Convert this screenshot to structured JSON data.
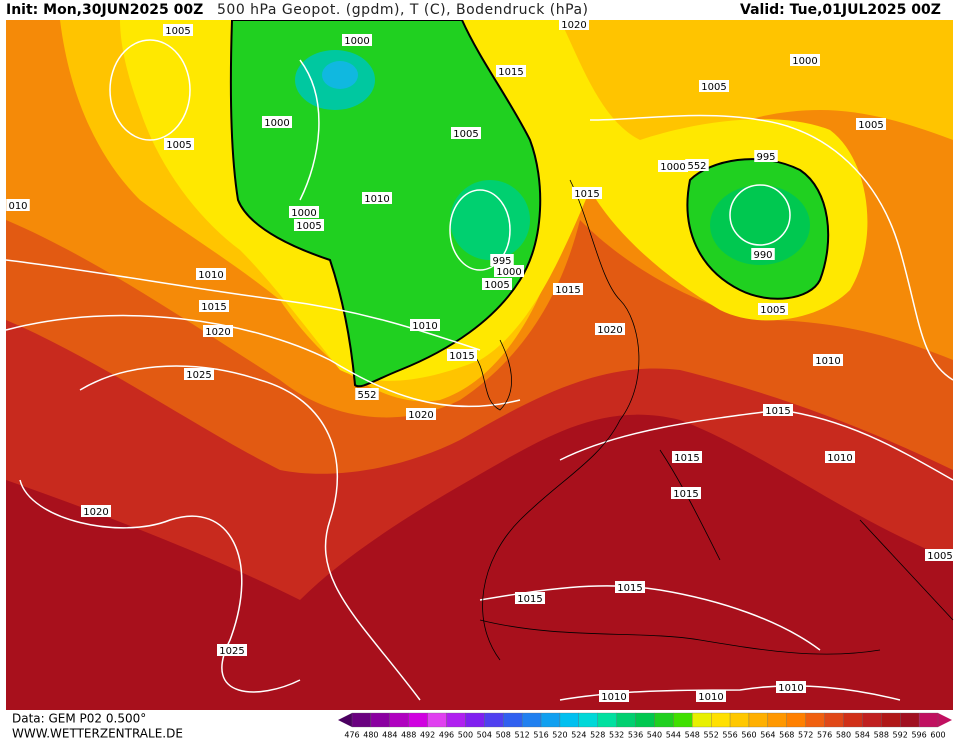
{
  "header": {
    "init": "Init: Mon,30JUN2025 00Z",
    "title": "500 hPa Geopot. (gpdm), T (C), Bodendruck (hPa)",
    "valid": "Valid: Tue,01JUL2025 00Z"
  },
  "footer": {
    "data": "Data: GEM P02 0.500°",
    "site": "WWW.WETTERZENTRALE.DE"
  },
  "isobar_labels": [
    "1005",
    "1000",
    "1020",
    "1015",
    "1000",
    "1005",
    "1005",
    "1000",
    "1005",
    "1005",
    "995",
    "1000",
    "552",
    "1015",
    "1010",
    "010",
    "1000",
    "1005",
    "995",
    "1000",
    "990",
    "1005",
    "1010",
    "1015",
    "1015",
    "1005",
    "1020",
    "1020",
    "1010",
    "1015",
    "1010",
    "552",
    "1025",
    "1020",
    "1015",
    "1015",
    "1010",
    "1015",
    "1020",
    "1005",
    "1015",
    "1015",
    "1025",
    "1010",
    "1010",
    "1010"
  ],
  "colorbar": {
    "labels": [
      476,
      480,
      484,
      488,
      492,
      496,
      500,
      504,
      508,
      512,
      516,
      520,
      524,
      528,
      532,
      536,
      540,
      544,
      548,
      552,
      556,
      560,
      564,
      568,
      572,
      576,
      580,
      584,
      588,
      592,
      596,
      600
    ],
    "colors": [
      "#4b0060",
      "#6a0080",
      "#8a00a0",
      "#b000c0",
      "#d000e0",
      "#e040f0",
      "#b020f0",
      "#8020f0",
      "#5040f0",
      "#3060f0",
      "#2080f0",
      "#10a0f0",
      "#00c0f0",
      "#00d8d8",
      "#00e0a0",
      "#00d070",
      "#00c850",
      "#20d020",
      "#40e000",
      "#e8f000",
      "#ffe000",
      "#ffc800",
      "#ffb000",
      "#ff9800",
      "#ff8000",
      "#f06010",
      "#e04818",
      "#d03018",
      "#c02020",
      "#b01818",
      "#a01020",
      "#c01060"
    ]
  }
}
